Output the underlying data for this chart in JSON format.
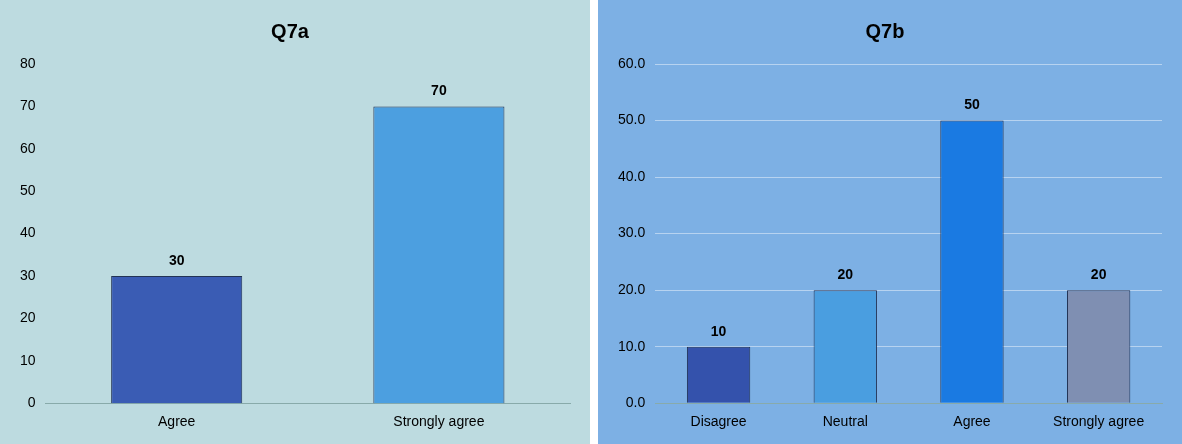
{
  "chart_data": [
    {
      "type": "bar",
      "title": "Q7a",
      "categories": [
        "Agree",
        "Strongly agree"
      ],
      "values": [
        30,
        70
      ],
      "colors": [
        "#3a5cb4",
        "#4c9fe0"
      ],
      "ylim": [
        0,
        80
      ],
      "yticks": [
        0,
        10,
        20,
        30,
        40,
        50,
        60,
        70,
        80
      ],
      "grid": false,
      "data_labels": true
    },
    {
      "type": "bar",
      "title": "Q7b",
      "categories": [
        "Disagree",
        "Neutral",
        "Agree",
        "Strongly agree"
      ],
      "values": [
        10,
        20,
        50,
        20
      ],
      "colors": [
        "#3452ac",
        "#4a9ee0",
        "#1a7ae2",
        "#7f8fb2"
      ],
      "ylim": [
        0,
        60
      ],
      "yticks": [
        {
          "value": 0,
          "label": "0.0"
        },
        {
          "value": 10,
          "label": "10.0"
        },
        {
          "value": 20,
          "label": "20.0"
        },
        {
          "value": 30,
          "label": "30.0"
        },
        {
          "value": 40,
          "label": "40.0"
        },
        {
          "value": 50,
          "label": "50.0"
        },
        {
          "value": 60,
          "label": "60.0"
        }
      ],
      "grid": "y",
      "data_labels": true
    }
  ]
}
